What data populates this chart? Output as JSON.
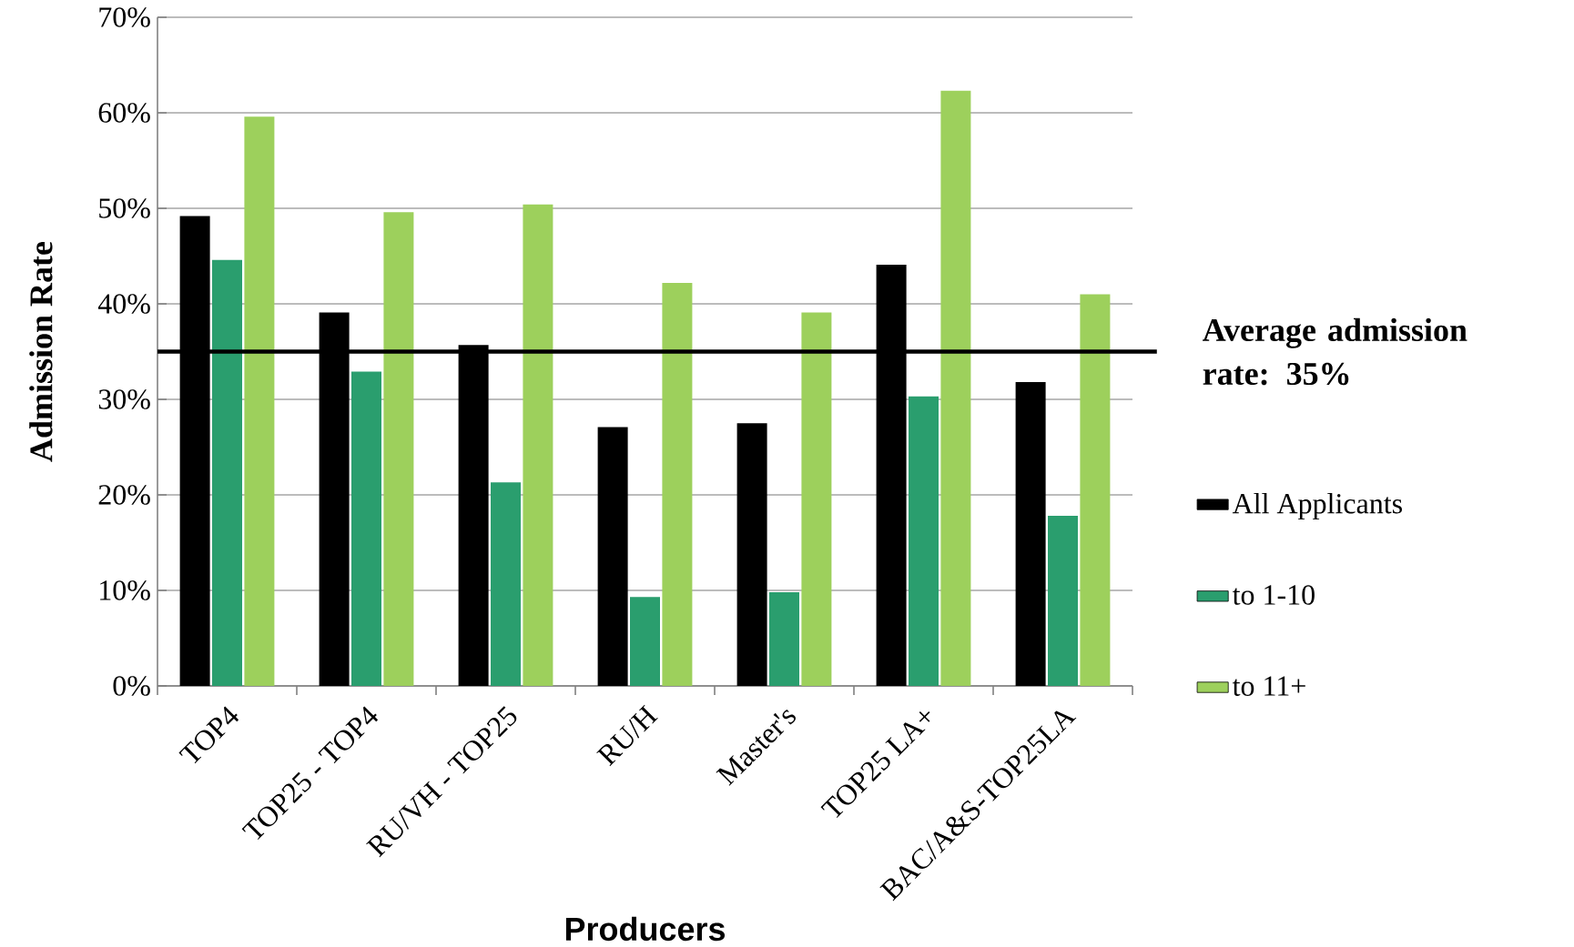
{
  "chart_data": {
    "type": "bar",
    "xlabel": "Producers",
    "ylabel": "Admission Rate",
    "categories": [
      "TOP4",
      "TOP25 - TOP4",
      "RU/VH - TOP25",
      "RU/H",
      "Master's",
      "TOP25 LA+",
      "BAC/A&S-TOP25LA"
    ],
    "series": [
      {
        "name": "All Applicants",
        "color": "#000000",
        "values": [
          49.2,
          39.1,
          35.7,
          27.1,
          27.5,
          44.1,
          31.8
        ]
      },
      {
        "name": "to  1-10",
        "color": "#2a9e6e",
        "values": [
          44.6,
          32.9,
          21.3,
          9.3,
          9.8,
          30.3,
          17.8
        ]
      },
      {
        "name": "to 11+",
        "color": "#9dd05c",
        "values": [
          59.6,
          49.6,
          50.4,
          42.2,
          39.1,
          62.3,
          41.0
        ]
      }
    ],
    "ylim": [
      0,
      70
    ],
    "yticks": [
      {
        "value": 0,
        "label": "0%"
      },
      {
        "value": 10,
        "label": "10%"
      },
      {
        "value": 20,
        "label": "20%"
      },
      {
        "value": 30,
        "label": "30%"
      },
      {
        "value": 40,
        "label": "40%"
      },
      {
        "value": 50,
        "label": "50%"
      },
      {
        "value": 60,
        "label": "60%"
      },
      {
        "value": 70,
        "label": "70%"
      }
    ],
    "ref_lines": [
      {
        "axis": "y",
        "value": 35,
        "label": "Average admission rate:  35%",
        "color": "#000000"
      }
    ],
    "grid": "y",
    "legend": "right"
  }
}
